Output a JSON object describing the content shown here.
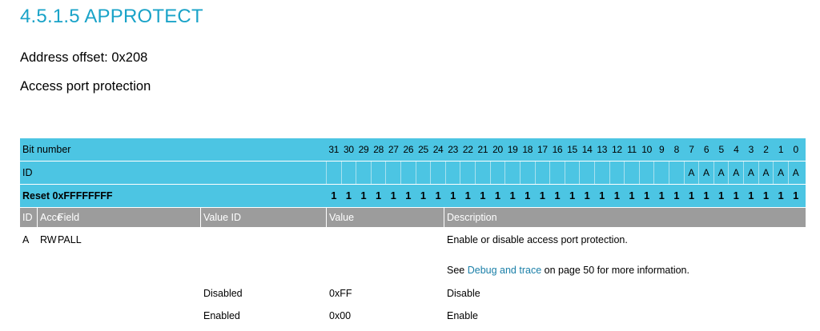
{
  "title": "4.5.1.5 APPROTECT",
  "address": "Address offset: 0x208",
  "description": "Access port protection",
  "bit_table": {
    "row_labels": {
      "bit_number": "Bit number",
      "id": "ID",
      "reset": "Reset 0xFFFFFFFF"
    },
    "bits": [
      "31",
      "30",
      "29",
      "28",
      "27",
      "26",
      "25",
      "24",
      "23",
      "22",
      "21",
      "20",
      "19",
      "18",
      "17",
      "16",
      "15",
      "14",
      "13",
      "12",
      "11",
      "10",
      "9",
      "8",
      "7",
      "6",
      "5",
      "4",
      "3",
      "2",
      "1",
      "0"
    ],
    "ids": [
      "",
      "",
      "",
      "",
      "",
      "",
      "",
      "",
      "",
      "",
      "",
      "",
      "",
      "",
      "",
      "",
      "",
      "",
      "",
      "",
      "",
      "",
      "",
      "",
      "A",
      "A",
      "A",
      "A",
      "A",
      "A",
      "A",
      "A"
    ],
    "reset_values": [
      "1",
      "1",
      "1",
      "1",
      "1",
      "1",
      "1",
      "1",
      "1",
      "1",
      "1",
      "1",
      "1",
      "1",
      "1",
      "1",
      "1",
      "1",
      "1",
      "1",
      "1",
      "1",
      "1",
      "1",
      "1",
      "1",
      "1",
      "1",
      "1",
      "1",
      "1",
      "1"
    ]
  },
  "field_table": {
    "headers": {
      "id": "ID",
      "access": "Acce",
      "field": "Field",
      "value_id": "Value ID",
      "value": "Value",
      "description": "Description"
    },
    "field": {
      "id": "A",
      "access": "RW",
      "name": "PALL",
      "description": "Enable or disable access port protection.",
      "see_prefix": "See ",
      "see_link": "Debug and trace",
      "see_suffix": " on page 50 for more information."
    },
    "values": [
      {
        "value_id": "Disabled",
        "value": "0xFF",
        "description": "Disable"
      },
      {
        "value_id": "Enabled",
        "value": "0x00",
        "description": "Enable"
      }
    ]
  }
}
